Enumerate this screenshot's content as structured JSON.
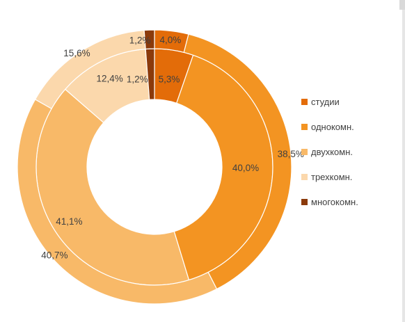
{
  "chart_data": {
    "type": "pie",
    "subtype": "doughnut",
    "categories": [
      "студии",
      "однокомн.",
      "двухкомн.",
      "трехкомн.",
      "многокомн."
    ],
    "colors": [
      "#E36C09",
      "#F39422",
      "#F8B968",
      "#FBD8AC",
      "#8B3A0B"
    ],
    "series": [
      {
        "ring": "inner",
        "values": [
          5.3,
          40.0,
          41.1,
          12.4,
          1.2
        ],
        "labels": [
          "5,3%",
          "40,0%",
          "41,1%",
          "12,4%",
          "1,2%"
        ]
      },
      {
        "ring": "outer",
        "values": [
          4.0,
          38.5,
          40.7,
          15.6,
          1.2
        ],
        "labels": [
          "4,0%",
          "38,5%",
          "40,7%",
          "15,6%",
          "1,2%"
        ]
      }
    ],
    "legend_position": "right",
    "start_angle": "top",
    "direction": "clockwise"
  },
  "legend": {
    "items": [
      {
        "label": "студии",
        "color": "#E36C09"
      },
      {
        "label": "однокомн.",
        "color": "#F39422"
      },
      {
        "label": "двухкомн.",
        "color": "#F8B968"
      },
      {
        "label": "трехкомн.",
        "color": "#FBD8AC"
      },
      {
        "label": "многокомн.",
        "color": "#8B3A0B"
      }
    ]
  }
}
